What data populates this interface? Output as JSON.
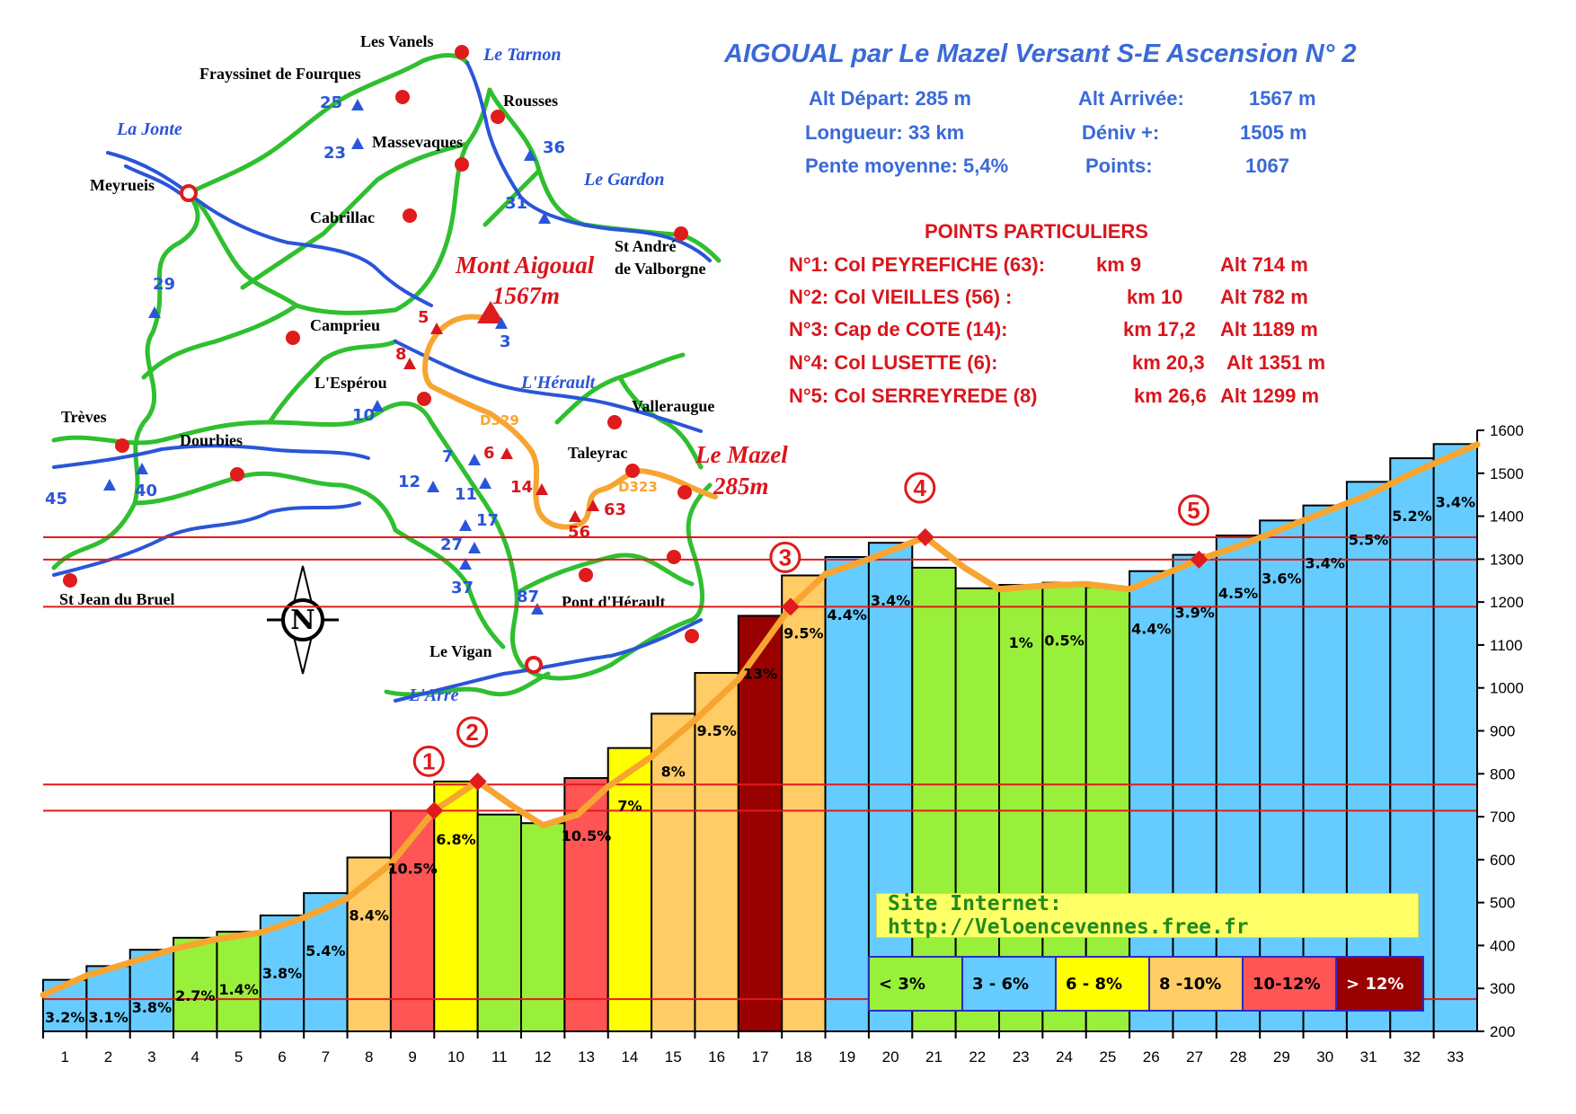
{
  "title": "AIGOUAL par Le Mazel  Versant S-E Ascension N° 2",
  "stats": {
    "alt_depart": "Alt Départ: 285 m",
    "alt_arrivee_label": "Alt Arrivée:",
    "alt_arrivee_value": "1567 m",
    "longueur": "Longueur: 33 km",
    "deniv_label": "Déniv +:",
    "deniv_value": "1505 m",
    "pente": "Pente moyenne: 5,4%",
    "points_label": "Points:",
    "points_value": "1067"
  },
  "points_particuliers": {
    "heading": "POINTS PARTICULIERS",
    "rows": [
      {
        "name": "N°1: Col PEYREFICHE (63):",
        "km": "km 9",
        "alt": "Alt 714 m"
      },
      {
        "name": "N°2: Col VIEILLES (56) :",
        "km": "km 10",
        "alt": "Alt 782 m"
      },
      {
        "name": "N°3: Cap de COTE (14):",
        "km": "km 17,2",
        "alt": "Alt 1189 m"
      },
      {
        "name": "N°4: Col LUSETTE (6):",
        "km": "km 20,3",
        "alt": "Alt 1351 m"
      },
      {
        "name": "N°5: Col SERREYREDE (8)",
        "km": "km 26,6",
        "alt": "Alt 1299 m"
      }
    ]
  },
  "site": "Site Internet: http://Veloencevennes.free.fr",
  "legend": [
    {
      "label": "< 3%",
      "color": "#99f03a"
    },
    {
      "label": "3 - 6%",
      "color": "#66ccff"
    },
    {
      "label": "6 - 8%",
      "color": "#ffff00"
    },
    {
      "label": "8 -10%",
      "color": "#ffcc66"
    },
    {
      "label": "10-12%",
      "color": "#ff5555"
    },
    {
      "label": "> 12%",
      "color": "#990000"
    }
  ],
  "map": {
    "places": [
      "Les Vanels",
      "Frayssinet de Fourques",
      "Rousses",
      "Massevaques",
      "Meyrueis",
      "Cabrillac",
      "St André",
      "de Valborgne",
      "Camprieu",
      "L'Espérou",
      "Valleraugue",
      "Trèves",
      "Dourbies",
      "Taleyrac",
      "St Jean du Bruel",
      "Pont d'Hérault",
      "Le Vigan"
    ],
    "rivers": [
      "Le Tarnon",
      "La Jonte",
      "Le Gardon",
      "L'Hérault",
      "L'Arre"
    ],
    "roads": [
      "D329",
      "D323"
    ],
    "summit_name": "Mont Aigoual",
    "summit_alt": "1567m",
    "start_name": "Le Mazel",
    "start_alt": "285m",
    "blue_numbers": [
      "25",
      "23",
      "36",
      "31",
      "29",
      "3",
      "10",
      "7",
      "12",
      "11",
      "17",
      "27",
      "37",
      "45",
      "40",
      "87"
    ],
    "red_numbers": [
      "5",
      "8",
      "6",
      "14",
      "63",
      "56"
    ],
    "compass": "N"
  },
  "colors": {
    "title_blue": "#3a6ad8",
    "red": "#d9161c",
    "profile_line": "#f7a531",
    "road_green": "#2fbf2f",
    "river_blue": "#2a55d8"
  },
  "chart_data": {
    "type": "bar",
    "categories": [
      "1",
      "2",
      "3",
      "4",
      "5",
      "6",
      "7",
      "8",
      "9",
      "10",
      "11",
      "12",
      "13",
      "14",
      "15",
      "16",
      "17",
      "18",
      "19",
      "20",
      "21",
      "22",
      "23",
      "24",
      "25",
      "26",
      "27",
      "28",
      "29",
      "30",
      "31",
      "32",
      "33"
    ],
    "values": [
      320,
      352,
      390,
      418,
      432,
      470,
      522,
      605,
      714,
      782,
      705,
      685,
      790,
      860,
      940,
      1035,
      1168,
      1262,
      1305,
      1338,
      1280,
      1232,
      1240,
      1245,
      1235,
      1272,
      1310,
      1355,
      1390,
      1425,
      1480,
      1535,
      1568
    ],
    "gradients": [
      "3.2%",
      "3.1%",
      "3.8%",
      "2.7%",
      "1.4%",
      "3.8%",
      "5.4%",
      "8.4%",
      "10.5%",
      "6.8%",
      "",
      "",
      "10.5%",
      "7%",
      "8%",
      "9.5%",
      "13%",
      "9.5%",
      "4.4%",
      "3.4%",
      "",
      "",
      "1%",
      "0.5%",
      "",
      "4.4%",
      "3.9%",
      "4.5%",
      "3.6%",
      "3.4%",
      "5.5%",
      "5.2%",
      "3.4%"
    ],
    "gradient_category": [
      "3-6",
      "3-6",
      "3-6",
      "<3",
      "<3",
      "3-6",
      "3-6",
      "8-10",
      "10-12",
      "6-8",
      "<3",
      "<3",
      "10-12",
      "6-8",
      "8-10",
      "8-10",
      ">12",
      "8-10",
      "3-6",
      "3-6",
      "<3",
      "<3",
      "<3",
      "<3",
      "<3",
      "3-6",
      "3-6",
      "3-6",
      "3-6",
      "3-6",
      "3-6",
      "3-6",
      "3-6"
    ],
    "profile": [
      [
        0,
        285
      ],
      [
        1,
        330
      ],
      [
        2,
        360
      ],
      [
        3,
        392
      ],
      [
        4,
        415
      ],
      [
        5,
        430
      ],
      [
        6,
        465
      ],
      [
        7,
        510
      ],
      [
        8,
        590
      ],
      [
        9,
        714
      ],
      [
        10,
        782
      ],
      [
        10.8,
        725
      ],
      [
        11.5,
        680
      ],
      [
        12.3,
        705
      ],
      [
        13,
        770
      ],
      [
        14,
        840
      ],
      [
        15,
        925
      ],
      [
        16,
        1020
      ],
      [
        17.2,
        1189
      ],
      [
        18,
        1265
      ],
      [
        19,
        1300
      ],
      [
        20.3,
        1351
      ],
      [
        21.2,
        1280
      ],
      [
        22,
        1230
      ],
      [
        23,
        1238
      ],
      [
        24,
        1242
      ],
      [
        25,
        1230
      ],
      [
        26.6,
        1299
      ],
      [
        27.5,
        1330
      ],
      [
        28.5,
        1370
      ],
      [
        29.5,
        1410
      ],
      [
        30.5,
        1450
      ],
      [
        31.5,
        1500
      ],
      [
        32.5,
        1545
      ],
      [
        33,
        1567
      ]
    ],
    "markers": [
      {
        "n": "1",
        "km": 9,
        "alt": 714
      },
      {
        "n": "2",
        "km": 10,
        "alt": 782
      },
      {
        "n": "3",
        "km": 17.2,
        "alt": 1189
      },
      {
        "n": "4",
        "km": 20.3,
        "alt": 1351
      },
      {
        "n": "5",
        "km": 26.6,
        "alt": 1299
      }
    ],
    "ref_lines": [
      275,
      714,
      775,
      1189,
      1299,
      1351
    ],
    "yticks": [
      "200",
      "300",
      "400",
      "500",
      "600",
      "700",
      "800",
      "900",
      "1000",
      "1100",
      "1200",
      "1300",
      "1400",
      "1500",
      "1600"
    ],
    "ylim": [
      200,
      1600
    ],
    "xlabel": "",
    "ylabel": "",
    "grid": false
  }
}
